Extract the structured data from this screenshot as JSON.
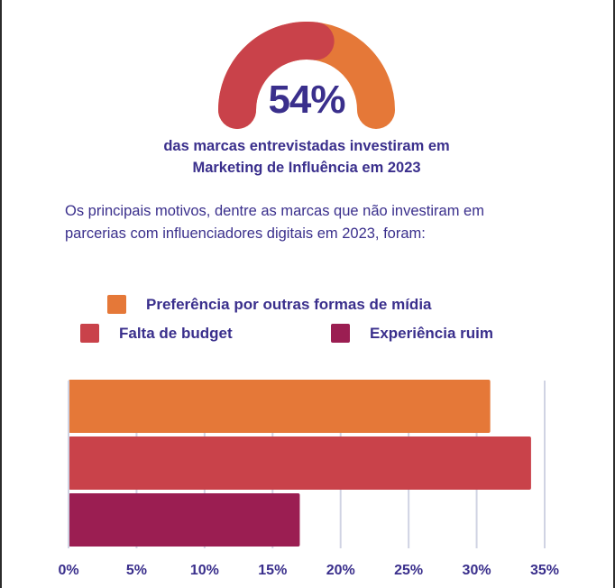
{
  "headline": {
    "value": "54%",
    "value_fraction": 0.54,
    "line1": "das marcas entrevistadas investiram em",
    "line2": "Marketing de Influência em 2023"
  },
  "intro": {
    "line1": "Os principais motivos, dentre as marcas que não investiram em",
    "line2": "parcerias com influenciadores digitais em 2023, foram:"
  },
  "colors": {
    "orange": "#e57838",
    "red": "#c9424a",
    "purple": "#9b1e52",
    "text": "#3a2f8c",
    "grid": "#d0d3e3"
  },
  "chart_data": {
    "type": "bar",
    "orientation": "horizontal",
    "title": "",
    "xlabel": "",
    "ylabel": "",
    "xlim": [
      0,
      35
    ],
    "grid": true,
    "legend_position": "top",
    "x_ticks": [
      "0%",
      "5%",
      "10%",
      "15%",
      "20%",
      "25%",
      "30%",
      "35%"
    ],
    "series": [
      {
        "name": "Preferência por outras formas de mídia",
        "value": 31,
        "color": "#e57838"
      },
      {
        "name": "Falta de budget",
        "value": 34,
        "color": "#c9424a"
      },
      {
        "name": "Experiência ruim",
        "value": 17,
        "color": "#9b1e52"
      }
    ]
  }
}
